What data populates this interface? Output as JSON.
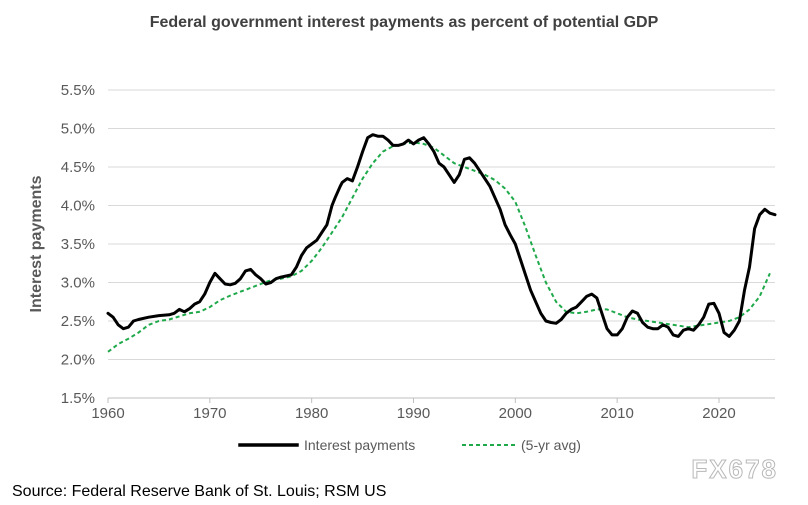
{
  "chart_data": {
    "type": "line",
    "title": "Federal government interest payments as percent of potential GDP",
    "xlabel": "",
    "ylabel": "Interest payments",
    "xlim": [
      1960,
      2025.5
    ],
    "ylim": [
      1.5,
      5.5
    ],
    "x_ticks": [
      1960,
      1970,
      1980,
      1990,
      2000,
      2010,
      2020
    ],
    "x_tick_labels": [
      "1960",
      "1970",
      "1980",
      "1990",
      "2000",
      "2010",
      "2020"
    ],
    "y_ticks": [
      1.5,
      2.0,
      2.5,
      3.0,
      3.5,
      4.0,
      4.5,
      5.0,
      5.5
    ],
    "y_tick_labels": [
      "1.5%",
      "2.0%",
      "2.5%",
      "3.0%",
      "3.5%",
      "4.0%",
      "4.5%",
      "5.0%",
      "5.5%"
    ],
    "grid": "horizontal",
    "legend_position": "bottom",
    "series": [
      {
        "name": "Interest payments",
        "color": "#000000",
        "style": "solid",
        "points": [
          [
            1960,
            2.6
          ],
          [
            1960.5,
            2.55
          ],
          [
            1961,
            2.45
          ],
          [
            1961.5,
            2.4
          ],
          [
            1962,
            2.42
          ],
          [
            1962.5,
            2.5
          ],
          [
            1963,
            2.52
          ],
          [
            1964,
            2.55
          ],
          [
            1965,
            2.57
          ],
          [
            1966,
            2.58
          ],
          [
            1966.5,
            2.6
          ],
          [
            1967,
            2.65
          ],
          [
            1967.5,
            2.62
          ],
          [
            1968,
            2.66
          ],
          [
            1968.5,
            2.72
          ],
          [
            1969,
            2.75
          ],
          [
            1969.5,
            2.85
          ],
          [
            1970,
            3.0
          ],
          [
            1970.5,
            3.12
          ],
          [
            1971,
            3.05
          ],
          [
            1971.5,
            2.98
          ],
          [
            1972,
            2.97
          ],
          [
            1972.5,
            2.99
          ],
          [
            1973,
            3.05
          ],
          [
            1973.5,
            3.15
          ],
          [
            1974,
            3.17
          ],
          [
            1974.5,
            3.1
          ],
          [
            1975,
            3.05
          ],
          [
            1975.5,
            2.98
          ],
          [
            1976,
            3.0
          ],
          [
            1976.5,
            3.05
          ],
          [
            1977,
            3.07
          ],
          [
            1978,
            3.1
          ],
          [
            1978.5,
            3.2
          ],
          [
            1979,
            3.35
          ],
          [
            1979.5,
            3.45
          ],
          [
            1980,
            3.5
          ],
          [
            1980.5,
            3.55
          ],
          [
            1981,
            3.65
          ],
          [
            1981.5,
            3.75
          ],
          [
            1982,
            4.0
          ],
          [
            1982.3,
            4.1
          ],
          [
            1982.8,
            4.25
          ],
          [
            1983,
            4.3
          ],
          [
            1983.5,
            4.35
          ],
          [
            1984,
            4.32
          ],
          [
            1984.5,
            4.5
          ],
          [
            1985,
            4.7
          ],
          [
            1985.5,
            4.88
          ],
          [
            1986,
            4.92
          ],
          [
            1986.5,
            4.9
          ],
          [
            1987,
            4.9
          ],
          [
            1987.5,
            4.85
          ],
          [
            1988,
            4.78
          ],
          [
            1988.5,
            4.78
          ],
          [
            1989,
            4.8
          ],
          [
            1989.5,
            4.85
          ],
          [
            1990,
            4.8
          ],
          [
            1990.5,
            4.85
          ],
          [
            1991,
            4.88
          ],
          [
            1991.5,
            4.8
          ],
          [
            1992,
            4.7
          ],
          [
            1992.5,
            4.55
          ],
          [
            1993,
            4.5
          ],
          [
            1993.5,
            4.4
          ],
          [
            1994,
            4.3
          ],
          [
            1994.5,
            4.4
          ],
          [
            1995,
            4.6
          ],
          [
            1995.5,
            4.62
          ],
          [
            1996,
            4.55
          ],
          [
            1996.5,
            4.45
          ],
          [
            1997,
            4.35
          ],
          [
            1997.5,
            4.25
          ],
          [
            1998,
            4.1
          ],
          [
            1998.5,
            3.95
          ],
          [
            1999,
            3.75
          ],
          [
            1999.5,
            3.62
          ],
          [
            2000,
            3.5
          ],
          [
            2000.5,
            3.3
          ],
          [
            2001,
            3.1
          ],
          [
            2001.5,
            2.9
          ],
          [
            2002,
            2.75
          ],
          [
            2002.5,
            2.6
          ],
          [
            2003,
            2.5
          ],
          [
            2003.5,
            2.48
          ],
          [
            2004,
            2.47
          ],
          [
            2004.5,
            2.52
          ],
          [
            2005,
            2.6
          ],
          [
            2005.5,
            2.65
          ],
          [
            2006,
            2.68
          ],
          [
            2006.5,
            2.75
          ],
          [
            2007,
            2.82
          ],
          [
            2007.5,
            2.85
          ],
          [
            2008,
            2.8
          ],
          [
            2008.5,
            2.6
          ],
          [
            2009,
            2.4
          ],
          [
            2009.5,
            2.32
          ],
          [
            2010,
            2.32
          ],
          [
            2010.5,
            2.4
          ],
          [
            2011,
            2.55
          ],
          [
            2011.5,
            2.63
          ],
          [
            2012,
            2.6
          ],
          [
            2012.5,
            2.48
          ],
          [
            2013,
            2.42
          ],
          [
            2013.5,
            2.4
          ],
          [
            2014,
            2.4
          ],
          [
            2014.5,
            2.45
          ],
          [
            2015,
            2.42
          ],
          [
            2015.5,
            2.32
          ],
          [
            2016,
            2.3
          ],
          [
            2016.5,
            2.38
          ],
          [
            2017,
            2.4
          ],
          [
            2017.5,
            2.38
          ],
          [
            2018,
            2.45
          ],
          [
            2018.5,
            2.55
          ],
          [
            2019,
            2.72
          ],
          [
            2019.5,
            2.73
          ],
          [
            2020,
            2.6
          ],
          [
            2020.5,
            2.35
          ],
          [
            2021,
            2.3
          ],
          [
            2021.5,
            2.38
          ],
          [
            2022,
            2.5
          ],
          [
            2022.5,
            2.9
          ],
          [
            2023,
            3.2
          ],
          [
            2023.5,
            3.7
          ],
          [
            2024,
            3.88
          ],
          [
            2024.5,
            3.95
          ],
          [
            2025,
            3.9
          ],
          [
            2025.5,
            3.88
          ]
        ]
      },
      {
        "name": "(5-yr avg)",
        "color": "#1fa94b",
        "style": "dashed",
        "points": [
          [
            1960,
            2.1
          ],
          [
            1961,
            2.2
          ],
          [
            1962,
            2.27
          ],
          [
            1963,
            2.35
          ],
          [
            1964,
            2.45
          ],
          [
            1965,
            2.5
          ],
          [
            1966,
            2.52
          ],
          [
            1967,
            2.56
          ],
          [
            1968,
            2.6
          ],
          [
            1969,
            2.62
          ],
          [
            1970,
            2.68
          ],
          [
            1971,
            2.77
          ],
          [
            1972,
            2.83
          ],
          [
            1973,
            2.88
          ],
          [
            1974,
            2.93
          ],
          [
            1975,
            2.98
          ],
          [
            1976,
            3.03
          ],
          [
            1977,
            3.05
          ],
          [
            1978,
            3.08
          ],
          [
            1979,
            3.15
          ],
          [
            1980,
            3.28
          ],
          [
            1981,
            3.45
          ],
          [
            1982,
            3.65
          ],
          [
            1983,
            3.85
          ],
          [
            1984,
            4.1
          ],
          [
            1985,
            4.35
          ],
          [
            1986,
            4.55
          ],
          [
            1987,
            4.7
          ],
          [
            1988,
            4.77
          ],
          [
            1989,
            4.8
          ],
          [
            1990,
            4.82
          ],
          [
            1991,
            4.8
          ],
          [
            1992,
            4.75
          ],
          [
            1993,
            4.65
          ],
          [
            1994,
            4.55
          ],
          [
            1995,
            4.5
          ],
          [
            1996,
            4.45
          ],
          [
            1997,
            4.4
          ],
          [
            1998,
            4.33
          ],
          [
            1999,
            4.22
          ],
          [
            2000,
            4.05
          ],
          [
            2001,
            3.72
          ],
          [
            2002,
            3.35
          ],
          [
            2003,
            3.0
          ],
          [
            2004,
            2.75
          ],
          [
            2005,
            2.62
          ],
          [
            2006,
            2.6
          ],
          [
            2007,
            2.62
          ],
          [
            2008,
            2.65
          ],
          [
            2009,
            2.65
          ],
          [
            2010,
            2.6
          ],
          [
            2011,
            2.55
          ],
          [
            2012,
            2.52
          ],
          [
            2013,
            2.5
          ],
          [
            2014,
            2.48
          ],
          [
            2015,
            2.46
          ],
          [
            2016,
            2.44
          ],
          [
            2017,
            2.42
          ],
          [
            2018,
            2.44
          ],
          [
            2019,
            2.46
          ],
          [
            2020,
            2.48
          ],
          [
            2021,
            2.5
          ],
          [
            2022,
            2.55
          ],
          [
            2023,
            2.65
          ],
          [
            2024,
            2.82
          ],
          [
            2025,
            3.12
          ]
        ]
      }
    ],
    "source": "Source: Federal Reserve Bank of St. Louis; RSM US"
  },
  "watermark": "FX678"
}
